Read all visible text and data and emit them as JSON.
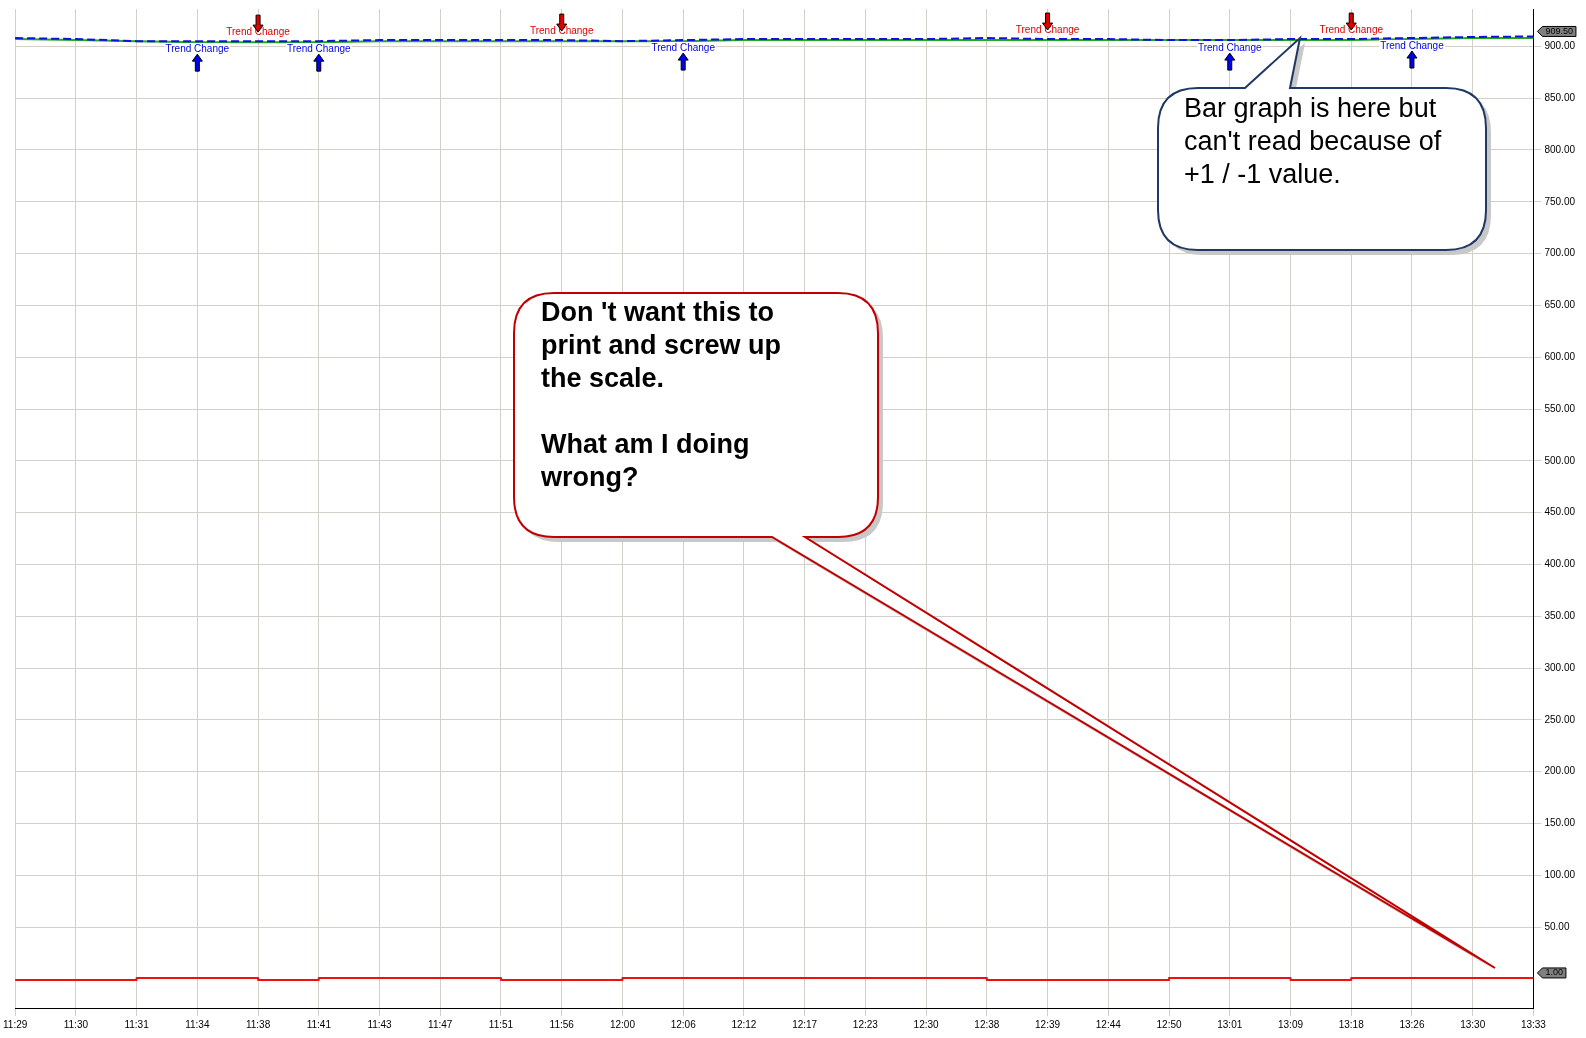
{
  "chart_data": {
    "type": "line",
    "categories": [
      "11:29",
      "11:30",
      "11:31",
      "11:34",
      "11:38",
      "11:41",
      "11:43",
      "11:47",
      "11:51",
      "11:56",
      "12:00",
      "12:06",
      "12:12",
      "12:17",
      "12:23",
      "12:30",
      "12:38",
      "12:39",
      "12:44",
      "12:50",
      "13:01",
      "13:09",
      "13:18",
      "13:26",
      "13:30",
      "13:33"
    ],
    "series": [
      {
        "color": "#1010e0",
        "line_style": "dashed",
        "values": [
          908,
          907,
          905,
          905,
          905,
          905,
          906,
          906,
          906,
          906,
          905,
          906,
          907,
          907,
          907,
          907,
          908,
          907,
          907,
          906,
          906,
          907,
          907,
          908,
          909,
          909.5
        ]
      },
      {
        "color": "#22aa22",
        "line_style": "solid",
        "values": [
          907,
          906,
          905,
          904,
          904,
          904,
          905,
          905,
          905,
          905,
          905,
          905,
          906,
          906,
          906,
          906,
          906,
          906,
          906,
          906,
          906,
          906,
          906,
          907,
          908,
          908
        ]
      },
      {
        "type": "step",
        "color": "#ee1111",
        "line_style": "solid",
        "values": [
          -1,
          -1,
          -1,
          1,
          1,
          -1,
          1,
          1,
          1,
          -1,
          -1,
          1,
          1,
          1,
          1,
          1,
          1,
          -1,
          -1,
          -1,
          1,
          1,
          -1,
          1,
          1,
          1
        ]
      }
    ],
    "ylim": [
      -28,
      936
    ],
    "yticks": [
      {
        "value": 50,
        "label": "50.00"
      },
      {
        "value": 100,
        "label": "100.00"
      },
      {
        "value": 150,
        "label": "150.00"
      },
      {
        "value": 200,
        "label": "200.00"
      },
      {
        "value": 250,
        "label": "250.00"
      },
      {
        "value": 300,
        "label": "300.00"
      },
      {
        "value": 350,
        "label": "350.00"
      },
      {
        "value": 400,
        "label": "400.00"
      },
      {
        "value": 450,
        "label": "450.00"
      },
      {
        "value": 500,
        "label": "500.00"
      },
      {
        "value": 550,
        "label": "550.00"
      },
      {
        "value": 600,
        "label": "600.00"
      },
      {
        "value": 650,
        "label": "650.00"
      },
      {
        "value": 700,
        "label": "700.00"
      },
      {
        "value": 750,
        "label": "750.00"
      },
      {
        "value": 800,
        "label": "800.00"
      },
      {
        "value": 850,
        "label": "850.00"
      },
      {
        "value": 900,
        "label": "900.00"
      }
    ],
    "grid": true,
    "legend": false,
    "marker": "none",
    "annotations": [
      {
        "text": "Trend Change",
        "x": "11:34",
        "y": 905
      },
      {
        "text": "Trend Change",
        "x": "11:38",
        "y": 905
      },
      {
        "text": "Trend Change",
        "x": "11:41",
        "y": 905
      },
      {
        "text": "Trend Change",
        "x": "11:56",
        "y": 906
      },
      {
        "text": "Trend Change",
        "x": "12:06",
        "y": 906
      },
      {
        "text": "Trend Change",
        "x": "12:39",
        "y": 907
      },
      {
        "text": "Trend Change",
        "x": "13:01",
        "y": 906
      },
      {
        "text": "Trend Change",
        "x": "13:18",
        "y": 907
      },
      {
        "text": "Trend Change",
        "x": "13:26",
        "y": 908
      },
      {
        "text": "909.50",
        "x": "13:33",
        "y": 909.5
      },
      {
        "text": "1.00",
        "x": "13:33",
        "y": 1
      },
      "Bar graph is here but can't read because of +1 / -1 value.",
      "Don 't want this to print and screw up the scale.\n\nWhat am I doing wrong?"
    ]
  }
}
